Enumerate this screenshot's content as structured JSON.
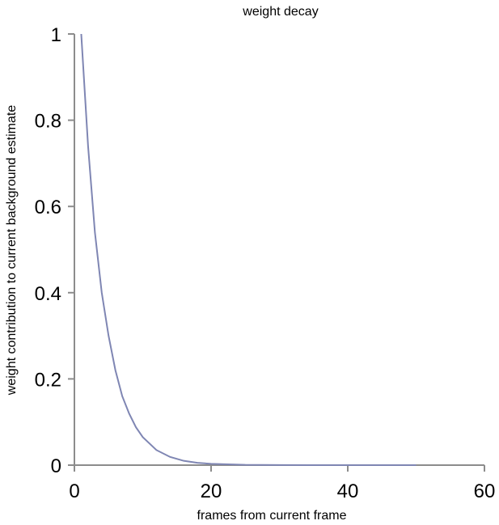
{
  "chart_data": {
    "type": "line",
    "title": "weight decay",
    "xlabel": "frames from current frame",
    "ylabel": "weight contribution to current background estimate",
    "xlim": [
      0,
      60
    ],
    "ylim": [
      0,
      1
    ],
    "x_ticks": [
      0,
      20,
      40,
      60
    ],
    "x_tick_labels": [
      "0",
      "20",
      "40",
      "60"
    ],
    "y_ticks": [
      0,
      0.2,
      0.4,
      0.6,
      0.8,
      1
    ],
    "y_tick_labels": [
      "0",
      "0.2",
      "0.4",
      "0.6",
      "0.8",
      "1"
    ],
    "grid": false,
    "series": [
      {
        "color": "#7f86b3",
        "x": [
          1,
          2,
          3,
          4,
          5,
          6,
          7,
          8,
          9,
          10,
          12,
          14,
          16,
          18,
          20,
          25,
          30,
          35,
          40,
          45,
          50
        ],
        "y": [
          1.0,
          0.74,
          0.54,
          0.4,
          0.3,
          0.22,
          0.16,
          0.12,
          0.088,
          0.065,
          0.035,
          0.019,
          0.01,
          0.0055,
          0.003,
          0.0007,
          0.0002,
          0.0001,
          0.0,
          0.0,
          0.0
        ]
      }
    ]
  }
}
